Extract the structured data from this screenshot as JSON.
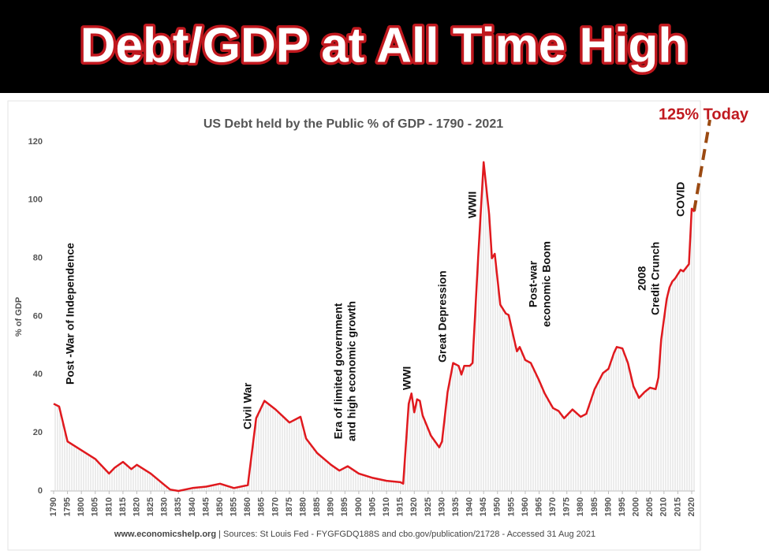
{
  "header": {
    "title": "Debt/GDP at All Time High"
  },
  "chart_data": {
    "type": "line",
    "title": "US Debt held by the Public % of GDP - 1790 - 2021",
    "y_label": "% of GDP",
    "color": "#e0191e",
    "x": [
      1790,
      1792,
      1795,
      1800,
      1805,
      1810,
      1812,
      1815,
      1818,
      1820,
      1825,
      1830,
      1832,
      1835,
      1840,
      1845,
      1850,
      1855,
      1860,
      1863,
      1866,
      1870,
      1875,
      1879,
      1881,
      1885,
      1890,
      1893,
      1896,
      1900,
      1905,
      1910,
      1915,
      1916,
      1918,
      1919,
      1920,
      1921,
      1922,
      1923,
      1926,
      1929,
      1930,
      1932,
      1934,
      1936,
      1937,
      1938,
      1940,
      1941,
      1943,
      1945,
      1947,
      1948,
      1949,
      1951,
      1953,
      1954,
      1956,
      1957,
      1958,
      1960,
      1962,
      1965,
      1967,
      1970,
      1972,
      1974,
      1977,
      1980,
      1982,
      1985,
      1988,
      1990,
      1992,
      1993,
      1995,
      1997,
      1999,
      2001,
      2003,
      2005,
      2007,
      2008,
      2009,
      2011,
      2012,
      2013,
      2014,
      2016,
      2017,
      2019,
      2020,
      2021
    ],
    "values": [
      30,
      29,
      17,
      14,
      11,
      6,
      8,
      10,
      7.5,
      9,
      6,
      2,
      0.5,
      0,
      1,
      1.5,
      2.5,
      1,
      2,
      25,
      31,
      28,
      23.5,
      25.5,
      18,
      13,
      9,
      7,
      8.5,
      6,
      4.5,
      3.5,
      3,
      2.5,
      30,
      33.5,
      27,
      31.5,
      31,
      26,
      19,
      15,
      17,
      34,
      44,
      43,
      40,
      43,
      43,
      44,
      80,
      113,
      95,
      80,
      81.5,
      64,
      61,
      60.5,
      52,
      48,
      49.5,
      45,
      44,
      38,
      33.5,
      28.5,
      27.5,
      25,
      28,
      25.5,
      26.5,
      35,
      40.5,
      42,
      47.5,
      49.5,
      49,
      44,
      36,
      32,
      34,
      35.5,
      35,
      39,
      52,
      66,
      70,
      72,
      73,
      76,
      75.5,
      78,
      97,
      96
    ],
    "xlim": [
      1790,
      2020
    ],
    "ylim": [
      0,
      120
    ],
    "yticks": [
      0,
      20,
      40,
      60,
      80,
      100,
      120
    ],
    "xticks": [
      1790,
      1795,
      1800,
      1805,
      1810,
      1815,
      1820,
      1825,
      1830,
      1835,
      1840,
      1845,
      1850,
      1855,
      1860,
      1865,
      1870,
      1875,
      1880,
      1885,
      1890,
      1895,
      1900,
      1905,
      1910,
      1915,
      1920,
      1925,
      1930,
      1935,
      1940,
      1945,
      1950,
      1955,
      1960,
      1965,
      1970,
      1975,
      1980,
      1985,
      1990,
      1995,
      2000,
      2005,
      2010,
      2015,
      2020
    ],
    "annotations": [
      {
        "lines": [
          "Post -War of Independence"
        ]
      },
      {
        "lines": [
          "Civil War"
        ]
      },
      {
        "lines": [
          "Era of limited government",
          "and high economic growth"
        ]
      },
      {
        "lines": [
          "WWI"
        ]
      },
      {
        "lines": [
          "Great Depression"
        ]
      },
      {
        "lines": [
          "WWII"
        ]
      },
      {
        "lines": [
          "Post-war",
          "economic Boom"
        ]
      },
      {
        "lines": [
          "2008",
          "Credit Crunch"
        ]
      },
      {
        "lines": [
          "COVID"
        ]
      }
    ],
    "callout": "125% Today",
    "source_site": "www.economicshelp.org",
    "source": "| Sources: St Louis Fed - FYGFGDQ188S and cbo.gov/publication/21728 - Accessed 31 Aug 2021"
  }
}
